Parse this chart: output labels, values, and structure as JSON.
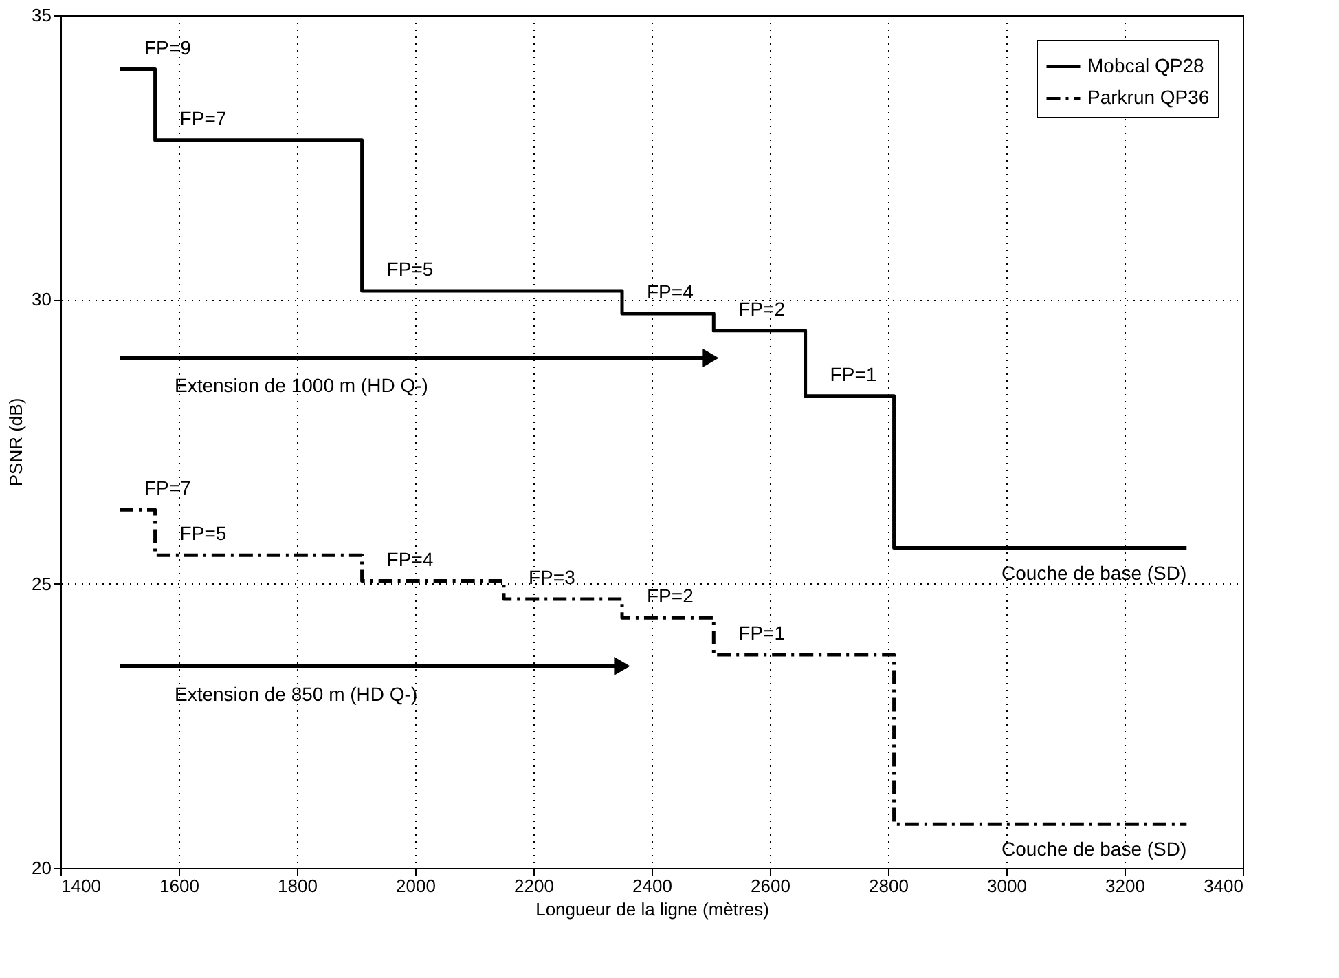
{
  "chart_data": {
    "type": "step",
    "xlabel": "Longueur de la ligne (mètres)",
    "ylabel": "PSNR (dB)",
    "xlim": [
      1400,
      3400
    ],
    "xticks": [
      1400,
      1600,
      1800,
      2000,
      2200,
      2400,
      2600,
      2800,
      3000,
      3200,
      3400
    ],
    "ylim": [
      20,
      35
    ],
    "yticks": [
      20,
      25,
      30,
      35
    ],
    "grid": true,
    "legend": "top right",
    "series": [
      {
        "name": "Mobcal QP28",
        "color": "#000000",
        "line_style": "solid",
        "x": [
          1500,
          1560,
          1910,
          2350,
          2505,
          2660,
          2810,
          3305
        ],
        "values": [
          34.05,
          32.8,
          30.15,
          29.75,
          29.45,
          28.3,
          25.63,
          25.63
        ]
      },
      {
        "name": "Parkrun QP36",
        "color": "#000000",
        "line_style": "dashdot",
        "x": [
          1500,
          1560,
          1910,
          2150,
          2350,
          2505,
          2810,
          3305
        ],
        "values": [
          26.3,
          25.5,
          25.05,
          24.73,
          24.4,
          23.75,
          20.77,
          20.77
        ]
      },
      {
        "type": "line",
        "color": "#000000",
        "line_style": "solid",
        "marker": "triangle",
        "x": [
          1500,
          2500
        ],
        "values": [
          28.97,
          28.97
        ]
      },
      {
        "type": "line",
        "color": "#000000",
        "line_style": "solid",
        "marker": "triangle",
        "x": [
          1500,
          2350
        ],
        "values": [
          23.55,
          23.55
        ]
      }
    ],
    "annotations": [
      {
        "text": "FP=9",
        "x": 1500,
        "y": 34.05
      },
      {
        "text": "FP=7",
        "x": 1560,
        "y": 32.8
      },
      {
        "text": "FP=5",
        "x": 1910,
        "y": 30.15
      },
      {
        "text": "FP=4",
        "x": 2350,
        "y": 29.75
      },
      {
        "text": "FP=2",
        "x": 2505,
        "y": 29.45
      },
      {
        "text": "FP=1",
        "x": 2660,
        "y": 28.3
      },
      {
        "text": "Extension de 1000 m (HD Q-)",
        "x": 1500,
        "y": 28.97
      },
      {
        "text": "Couche de base (SD)",
        "x": 3305,
        "y": 25.63
      },
      {
        "text": "FP=7",
        "x": 1500,
        "y": 26.3
      },
      {
        "text": "FP=5",
        "x": 1560,
        "y": 25.5
      },
      {
        "text": "FP=4",
        "x": 1910,
        "y": 25.05
      },
      {
        "text": "FP=3",
        "x": 2150,
        "y": 24.73
      },
      {
        "text": "FP=2",
        "x": 2350,
        "y": 24.4
      },
      {
        "text": "FP=1",
        "x": 2505,
        "y": 23.75
      },
      {
        "text": "Extension de 850 m (HD Q-)",
        "x": 1500,
        "y": 23.55
      },
      {
        "text": "Couche de base (SD)",
        "x": 3305,
        "y": 20.77
      }
    ]
  }
}
